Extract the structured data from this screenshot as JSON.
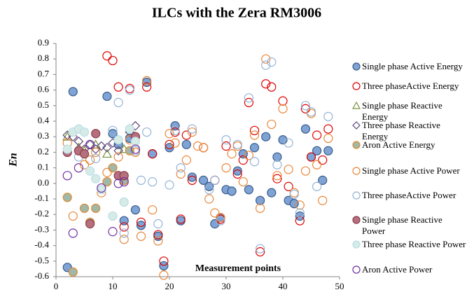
{
  "chart_data": {
    "type": "scatter",
    "title": "ILCs  with the Zera RM3006",
    "y_label": "En",
    "annotation": "Measurement points",
    "xlim": [
      0,
      50
    ],
    "xticks": [
      0,
      10,
      20,
      30,
      40,
      50
    ],
    "ylim": [
      -0.6,
      0.9
    ],
    "yticks": [
      -0.6,
      -0.5,
      -0.4,
      -0.3,
      -0.2,
      -0.1,
      {
        "value": 0,
        "label": "0.0"
      },
      0.1,
      0.2,
      0.3,
      0.4,
      0.5,
      0.6,
      0.7,
      0.8,
      0.9
    ],
    "legend": "right",
    "series": [
      {
        "name": "Single phase Active Energy",
        "marker": "circle",
        "color": "#385d8a",
        "fill": "#7fa3d4",
        "x": [
          3,
          2,
          9,
          10,
          11,
          12,
          13,
          14,
          15,
          16,
          17,
          18,
          19,
          20,
          21,
          22,
          23,
          24,
          26,
          27,
          28,
          29,
          30,
          31,
          32,
          33,
          34,
          35,
          36,
          37,
          38,
          39,
          40,
          41,
          42,
          43,
          44,
          45,
          46,
          47,
          48
        ],
        "values": [
          0.59,
          -0.54,
          0.56,
          0.32,
          0.25,
          -0.24,
          0.29,
          -0.17,
          -0.27,
          0.65,
          0.19,
          -0.34,
          -0.53,
          0.23,
          0.37,
          -0.24,
          0.25,
          0.04,
          0.02,
          -0.02,
          -0.26,
          -0.22,
          -0.04,
          -0.05,
          0.08,
          0.19,
          -0.04,
          0.23,
          -0.11,
          0.3,
          -0.06,
          0.17,
          0.28,
          -0.11,
          -0.13,
          -0.21,
          0.35,
          0.17,
          0.21,
          0.02,
          0.21
        ]
      },
      {
        "name": "Three phaseActive Energy",
        "marker": "circle",
        "color": "#e00000",
        "fill": "none",
        "x": [
          9,
          10,
          11,
          12,
          13,
          14,
          15,
          16,
          17,
          18,
          19,
          20,
          21,
          22,
          23,
          24,
          26,
          28,
          29,
          30,
          32,
          33,
          34,
          35,
          36,
          37,
          38,
          39,
          40,
          41,
          43,
          44,
          45,
          46,
          47,
          48
        ],
        "values": [
          0.82,
          0.79,
          0.62,
          -0.28,
          0.61,
          0.3,
          -0.25,
          0.62,
          0.19,
          -0.33,
          -0.5,
          0.25,
          0.33,
          -0.23,
          0.31,
          0.02,
          0.23,
          0.02,
          -0.23,
          0.24,
          0.06,
          0.15,
          0.52,
          0.34,
          -0.44,
          0.64,
          0.62,
          0.03,
          0.53,
          -0.02,
          -0.24,
          0.48,
          0.17,
          0.31,
          0.15,
          0.35
        ]
      },
      {
        "name": "Single phase Reactive Energy",
        "marker": "triangle",
        "color": "#77933c",
        "fill": "none",
        "x": [
          2,
          4,
          5,
          7,
          9,
          12,
          13
        ],
        "values": [
          0.3,
          0.23,
          0.21,
          0.25,
          0.19,
          0.22,
          0.35
        ]
      },
      {
        "name": "Three phase Reactive Energy",
        "marker": "diamond",
        "color": "#604a7b",
        "fill": "none",
        "x": [
          2,
          3,
          4,
          5,
          6,
          7,
          8,
          9,
          10,
          11,
          13,
          14
        ],
        "values": [
          0.31,
          0.3,
          0.27,
          0.22,
          0.25,
          0.22,
          0.24,
          0.23,
          0.26,
          0.21,
          0.33,
          0.37
        ]
      },
      {
        "name": "Aron Active  Energy",
        "marker": "circle",
        "color": "#e08a2e",
        "fill": "#9fb8a8",
        "x": [
          2,
          3,
          4,
          5,
          6,
          7,
          9,
          10,
          12,
          13
        ],
        "values": [
          -0.09,
          -0.57,
          0.21,
          -0.16,
          -0.25,
          -0.16,
          0.01,
          0.1,
          0.02,
          0.21
        ]
      },
      {
        "name": "Single phase Active Power",
        "marker": "circle",
        "color": "#e8873a",
        "fill": "none",
        "x": [
          2,
          3,
          5,
          6,
          7,
          8,
          9,
          11,
          12,
          13,
          14,
          15,
          16,
          17,
          18,
          19,
          20,
          21,
          22,
          23,
          24,
          25,
          26,
          27,
          28,
          29,
          30,
          31,
          32,
          33,
          34,
          35,
          36,
          37,
          38,
          39,
          40,
          41,
          42,
          43,
          44,
          45,
          46,
          47,
          48
        ],
        "values": [
          0.26,
          -0.21,
          0.12,
          0.15,
          0.2,
          -0.06,
          0.07,
          0.17,
          -0.36,
          0.28,
          0.2,
          -0.34,
          0.66,
          -0.17,
          -0.37,
          -0.59,
          0.32,
          0.26,
          0.06,
          0.15,
          0.33,
          0.24,
          0.23,
          -0.1,
          -0.19,
          -0.22,
          0.1,
          0.19,
          0.24,
          0.01,
          0.18,
          0.31,
          -0.16,
          0.8,
          0.38,
          0.05,
          0.48,
          0.09,
          -0.06,
          -0.14,
          0.08,
          0.45,
          0.12,
          -0.11,
          0.29
        ]
      },
      {
        "name": "Three phaseActive Power",
        "marker": "circle",
        "color": "#95b3d7",
        "fill": "none",
        "x": [
          4,
          7,
          10,
          11,
          12,
          13,
          14,
          15,
          16,
          17,
          18,
          20,
          21,
          22,
          24,
          27,
          28,
          29,
          30,
          32,
          34,
          35,
          36,
          37,
          38,
          39,
          41,
          42,
          43,
          44,
          45,
          46,
          48
        ],
        "values": [
          0.17,
          0.16,
          0.34,
          0.52,
          -0.32,
          0.6,
          0.21,
          0.02,
          0.33,
          0.01,
          -0.26,
          -0.01,
          0.34,
          0.1,
          0.35,
          -0.04,
          0.02,
          -0.24,
          0.28,
          0.25,
          0.55,
          0.14,
          -0.42,
          0.76,
          0.78,
          0.12,
          0.26,
          -0.07,
          -0.19,
          0.5,
          0.46,
          -0.02,
          0.43
        ]
      },
      {
        "name": "Single phase Reactive Power",
        "marker": "circle",
        "color": "#8c3a4a",
        "fill": "#b5707e",
        "x": [
          2,
          4,
          5,
          6,
          7,
          11,
          12,
          14
        ],
        "values": [
          0.2,
          0.21,
          0.19,
          -0.26,
          0.32,
          0.05,
          0.05,
          0.3
        ]
      },
      {
        "name": "Three phase Reactive Power",
        "marker": "circle",
        "color": "#b7dee8",
        "fill": "#d6ebe6",
        "x": [
          2,
          3,
          4,
          5,
          6,
          7,
          8,
          10,
          11,
          12,
          13,
          14
        ],
        "values": [
          0.22,
          0.33,
          0.35,
          0.33,
          0.08,
          0.03,
          -0.04,
          -0.21,
          0.28,
          -0.12,
          0.35,
          0.27
        ]
      },
      {
        "name": "Aron Active  Power",
        "marker": "circle",
        "color": "#7030a0",
        "fill": "none",
        "x": [
          2,
          3,
          4,
          6,
          8,
          10,
          11,
          12,
          14
        ],
        "values": [
          0.05,
          -0.32,
          0.1,
          0.25,
          -0.03,
          -0.31,
          0,
          0.01,
          0.22
        ]
      }
    ]
  }
}
